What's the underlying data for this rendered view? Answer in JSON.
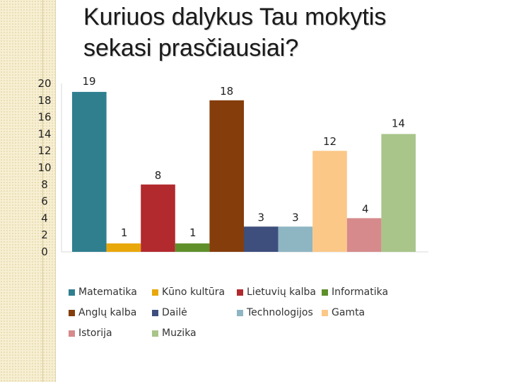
{
  "slide": {
    "title_line1": "Kuriuos dalykus Tau mokytis",
    "title_line2": "sekasi prasčiausiai?"
  },
  "chart_data": {
    "type": "bar",
    "categories": [
      "Matematika",
      "Kūno kultūra",
      "Lietuvių kalba",
      "Informatika",
      "Anglų kalba",
      "Dailė",
      "Technologijos",
      "Gamta",
      "Istorija",
      "Muzika"
    ],
    "values": [
      19,
      1,
      8,
      1,
      18,
      3,
      3,
      12,
      4,
      14
    ],
    "colors": [
      "#2f7f8f",
      "#e9a80a",
      "#b22a2e",
      "#5f8f2b",
      "#853d0b",
      "#3e4f7e",
      "#8eb5c2",
      "#fbc888",
      "#d68a8c",
      "#a9c58a"
    ],
    "ylim": [
      0,
      20
    ],
    "yticks": [
      "0",
      "2",
      "4",
      "6",
      "8",
      "10",
      "12",
      "14",
      "16",
      "18",
      "20"
    ],
    "data_labels": [
      "19",
      "1",
      "8",
      "1",
      "18",
      "3",
      "3",
      "12",
      "4",
      "14"
    ],
    "legend_position": "bottom",
    "grid": false
  }
}
